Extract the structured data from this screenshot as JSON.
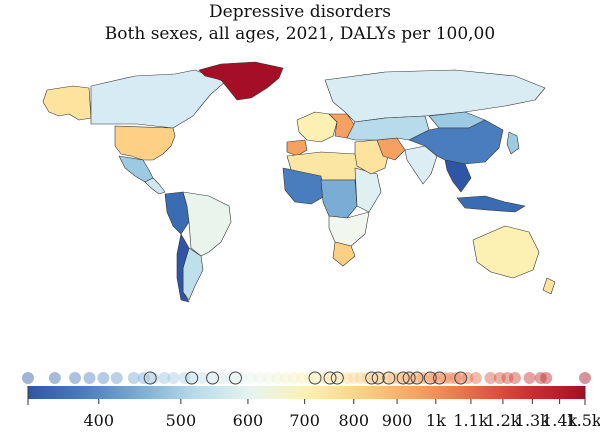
{
  "title": "Depressive disorders",
  "subtitle": "Both sexes, all ages, 2021, DALYs per 100,00",
  "legend": {
    "tick_labels": [
      "400",
      "500",
      "600",
      "700",
      "800",
      "900",
      "1k",
      "1.1k",
      "1.2k",
      "1.3k",
      "1.4k",
      "1.5k"
    ],
    "tick_values": [
      400,
      500,
      600,
      700,
      800,
      900,
      1000,
      1100,
      1200,
      1300,
      1400,
      1500
    ],
    "domain": [
      330,
      1500
    ],
    "bar_colors": [
      "#2f56a6",
      "#4a7dbe",
      "#7aacd5",
      "#b7dbea",
      "#e6f4ef",
      "#fcf1b2",
      "#fdd086",
      "#f6a162",
      "#e46a48",
      "#c7332f",
      "#a50f26"
    ],
    "dot_values": [
      330,
      355,
      375,
      390,
      405,
      420,
      440,
      452,
      463,
      478,
      490,
      505,
      515,
      530,
      545,
      560,
      575,
      590,
      605,
      620,
      635,
      650,
      665,
      680,
      695,
      710,
      725,
      740,
      755,
      770,
      785,
      800,
      815,
      830,
      845,
      860,
      875,
      890,
      905,
      920,
      935,
      950,
      965,
      980,
      995,
      1010,
      1025,
      1040,
      1055,
      1070,
      1090,
      1115,
      1160,
      1190,
      1215,
      1240,
      1290,
      1330,
      1350,
      1500
    ],
    "highlight_values": [
      460,
      515,
      545,
      580,
      720,
      750,
      765,
      840,
      855,
      880,
      915,
      930,
      950,
      985,
      1010,
      1070
    ]
  },
  "map_colors": {
    "ocean": "#ffffff",
    "greenland": "#a50f26",
    "canada": "#d7ebf5",
    "alaska": "#fde39d",
    "usa": "#fdd086",
    "mexico": "#9ccae2",
    "central_america": "#cfe7ef",
    "south_america_main": "#e9f5ec",
    "south_america_west": "#3a6cb4",
    "argentina": "#bfdfea",
    "chile": "#2f56a6",
    "west_africa": "#4a7dbe",
    "north_africa": "#fce6a4",
    "east_africa": "#dfeff2",
    "central_africa": "#7aacd5",
    "southern_africa": "#f1f7ef",
    "south_africa": "#fdd086",
    "europe": "#fcf1b2",
    "iberia": "#f6a162",
    "eastern_europe": "#f6a162",
    "russia": "#d9ecf3",
    "middle_east": "#fde39d",
    "iran": "#f6a162",
    "central_asia": "#b7dbea",
    "india": "#dcedf3",
    "china": "#4a7dbe",
    "mongolia": "#9ccae2",
    "southeast_asia": "#2f56a6",
    "indonesia": "#3a6cb4",
    "japan": "#9ccae2",
    "australia": "#fcf1b2",
    "new_zealand": "#fde39d"
  }
}
